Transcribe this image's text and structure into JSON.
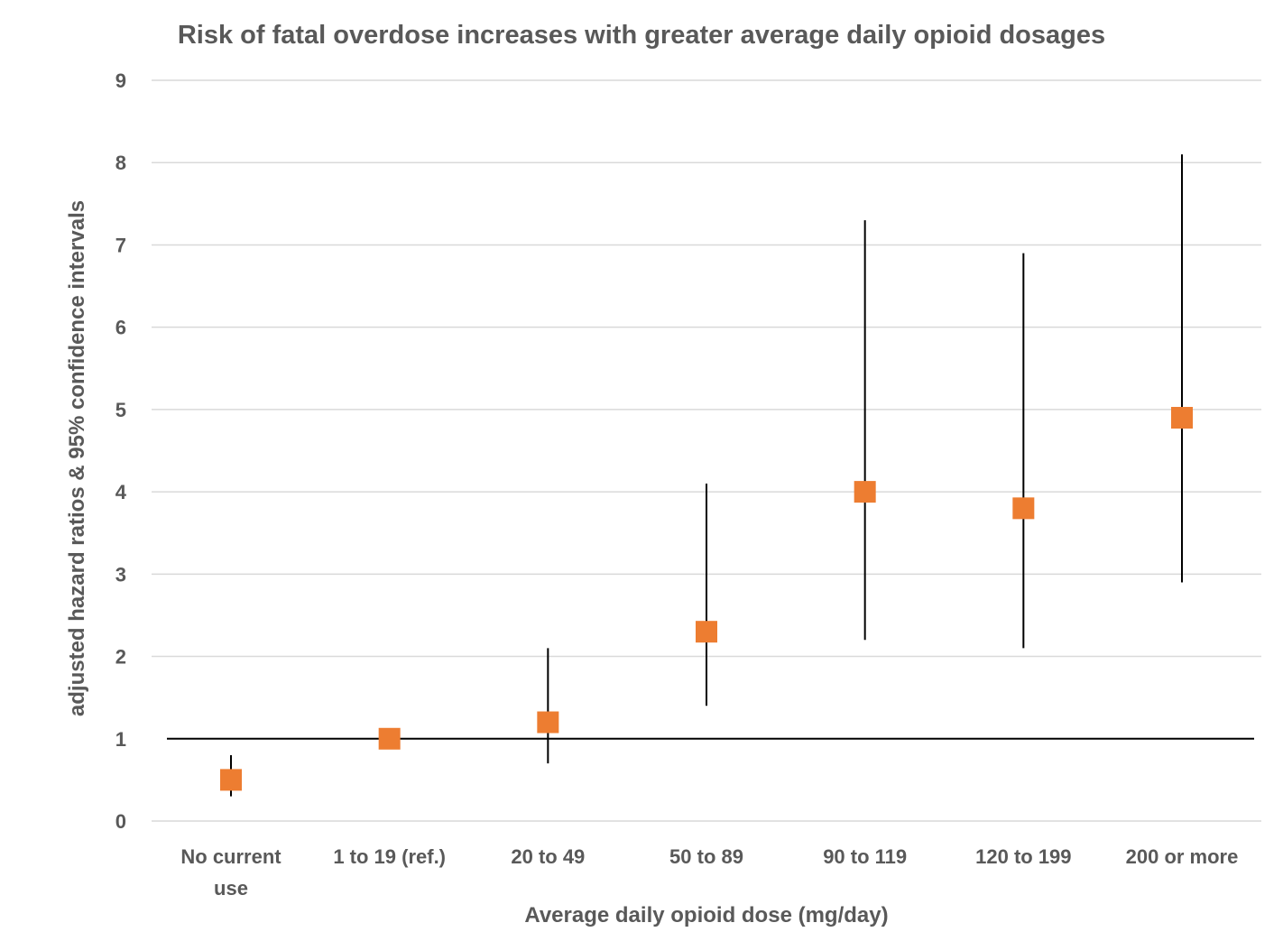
{
  "chart_data": {
    "type": "scatter",
    "title": "Risk of fatal overdose increases with greater average daily opioid dosages",
    "xlabel": "Average daily opioid dose (mg/day)",
    "ylabel": "adjusted hazard ratios & 95% confidence intervals",
    "categories": [
      [
        "No current",
        "use"
      ],
      [
        "1 to 19 (ref.)"
      ],
      [
        "20 to 49"
      ],
      [
        "50 to 89"
      ],
      [
        "90 to 119"
      ],
      [
        "120 to 199"
      ],
      [
        "200 or more"
      ]
    ],
    "values": [
      0.5,
      1.0,
      1.2,
      2.3,
      4.0,
      3.8,
      4.9
    ],
    "ci_low": [
      0.3,
      null,
      0.7,
      1.4,
      2.2,
      2.1,
      2.9
    ],
    "ci_high": [
      0.8,
      null,
      2.1,
      4.1,
      7.3,
      6.9,
      8.1
    ],
    "ylim": [
      0,
      9
    ],
    "yticks": [
      0,
      1,
      2,
      3,
      4,
      5,
      6,
      7,
      8,
      9
    ],
    "reference_line": 1,
    "grid": true,
    "marker": "square",
    "marker_color": "#ED7D31"
  }
}
